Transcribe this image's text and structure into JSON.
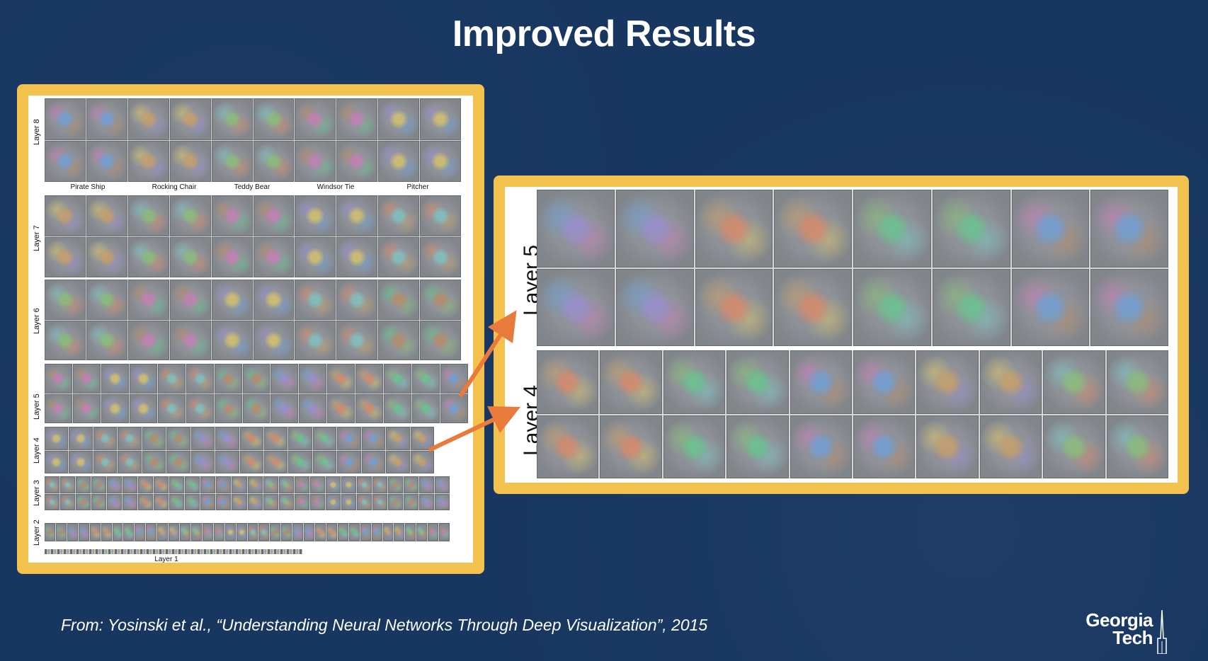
{
  "slide": {
    "title": "Improved Results",
    "citation": "From: Yosinski et al., “Understanding Neural Networks Through Deep Visualization”, 2015"
  },
  "logo": {
    "line1": "Georgia",
    "line2": "Tech",
    "icon": "tech-tower-spire-icon"
  },
  "left_figure": {
    "layers": [
      {
        "label": "Layer 8",
        "columns": 10,
        "rows": 2
      },
      {
        "label": "Layer 7",
        "columns": 10,
        "rows": 2
      },
      {
        "label": "Layer 6",
        "columns": 10,
        "rows": 2
      },
      {
        "label": "Layer 5",
        "columns": 15,
        "rows": 2
      },
      {
        "label": "Layer 4",
        "columns": 16,
        "rows": 2
      },
      {
        "label": "Layer 3",
        "columns": 26,
        "rows": 2
      },
      {
        "label": "Layer 2",
        "columns": 36,
        "rows": 1
      }
    ],
    "class_labels": [
      "Pirate Ship",
      "Rocking Chair",
      "Teddy Bear",
      "Windsor Tie",
      "Pitcher"
    ],
    "layer1_label": "Layer 1"
  },
  "right_figure": {
    "layers": [
      {
        "label": "Layer 5",
        "columns": 8,
        "rows": 2
      },
      {
        "label": "Layer 4",
        "columns": 10,
        "rows": 2
      }
    ]
  },
  "colors": {
    "background": "#173660",
    "panel_border": "#f2c14e",
    "arrow": "#e87a3c"
  }
}
